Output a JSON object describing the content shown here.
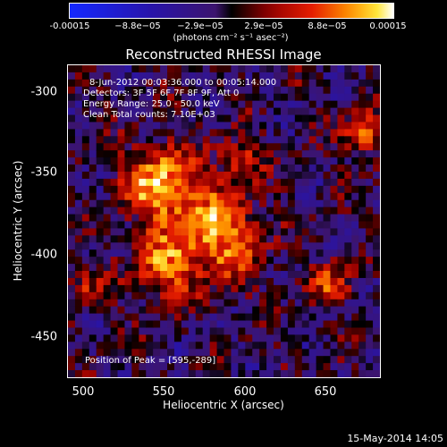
{
  "chart_data": {
    "type": "heatmap",
    "title": "Reconstructed RHESSI Image",
    "xlabel": "Heliocentric X (arcsec)",
    "ylabel": "Heliocentric Y (arcsec)",
    "xlim": [
      490,
      682
    ],
    "ylim": [
      -475,
      -284
    ],
    "x_ticks": [
      500,
      550,
      600,
      650
    ],
    "y_ticks": [
      -300,
      -350,
      -400,
      -450
    ],
    "colorbar": {
      "unit_label": "(photons cm⁻² s⁻¹ asec⁻²)",
      "tick_labels": [
        "-0.00015",
        "−8.8e−05",
        "−2.9e−05",
        "2.9e−05",
        "8.8e−05",
        "0.00015"
      ],
      "tick_values": [
        -0.00015,
        -8.8e-05,
        -2.9e-05,
        2.9e-05,
        8.8e-05,
        0.00015
      ],
      "range": [
        -0.00015,
        0.00015
      ]
    },
    "annotations": {
      "time_range": "8-Jun-2012 00:03:36.000 to 00:05:14.000",
      "detectors": "Detectors: 3F 5F 6F 7F 8F 9F, Att 0",
      "energy": "Energy Range: 25.0 - 50.0 keV",
      "clean": "Clean    Total counts: 7.10E+03",
      "peak": "Position of Peak = [595,-289]"
    },
    "peak_position": [
      595,
      -289
    ],
    "grid": false
  },
  "timestamp": "15-May-2014 14:05"
}
